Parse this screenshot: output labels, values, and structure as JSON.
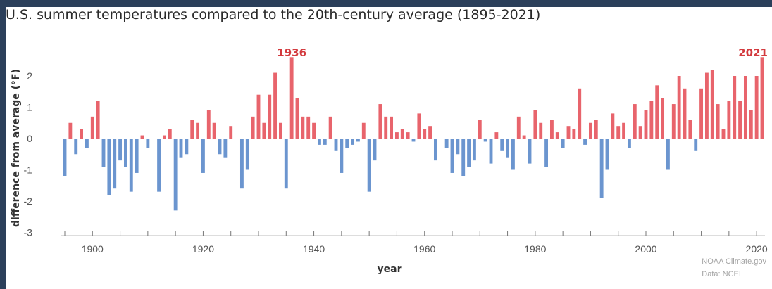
{
  "colors": {
    "above": "#e8646c",
    "below": "#6b95cf",
    "axis": "#555555",
    "accent": "#d33a3e"
  },
  "chart_data": {
    "type": "bar",
    "title": "U.S. summer temperatures compared to the 20th-century average (1895-2021)",
    "xlabel": "year",
    "ylabel": "difference from average (°F)",
    "xlim": [
      1895,
      2021
    ],
    "ylim": [
      -3,
      2.6
    ],
    "xticks": [
      1900,
      1920,
      1940,
      1960,
      1980,
      2000,
      2020
    ],
    "yticks": [
      -3,
      -2,
      -1,
      0,
      1,
      2
    ],
    "annotations": [
      {
        "text": "1936",
        "x": 1936
      },
      {
        "text": "2021",
        "x": 2021
      }
    ],
    "x": [
      1895,
      1896,
      1897,
      1898,
      1899,
      1900,
      1901,
      1902,
      1903,
      1904,
      1905,
      1906,
      1907,
      1908,
      1909,
      1910,
      1911,
      1912,
      1913,
      1914,
      1915,
      1916,
      1917,
      1918,
      1919,
      1920,
      1921,
      1922,
      1923,
      1924,
      1925,
      1926,
      1927,
      1928,
      1929,
      1930,
      1931,
      1932,
      1933,
      1934,
      1935,
      1936,
      1937,
      1938,
      1939,
      1940,
      1941,
      1942,
      1943,
      1944,
      1945,
      1946,
      1947,
      1948,
      1949,
      1950,
      1951,
      1952,
      1953,
      1954,
      1955,
      1956,
      1957,
      1958,
      1959,
      1960,
      1961,
      1962,
      1963,
      1964,
      1965,
      1966,
      1967,
      1968,
      1969,
      1970,
      1971,
      1972,
      1973,
      1974,
      1975,
      1976,
      1977,
      1978,
      1979,
      1980,
      1981,
      1982,
      1983,
      1984,
      1985,
      1986,
      1987,
      1988,
      1989,
      1990,
      1991,
      1992,
      1993,
      1994,
      1995,
      1996,
      1997,
      1998,
      1999,
      2000,
      2001,
      2002,
      2003,
      2004,
      2005,
      2006,
      2007,
      2008,
      2009,
      2010,
      2011,
      2012,
      2013,
      2014,
      2015,
      2016,
      2017,
      2018,
      2019,
      2020,
      2021
    ],
    "values": [
      -1.2,
      0.5,
      -0.5,
      0.3,
      -0.3,
      0.7,
      1.2,
      -0.9,
      -1.8,
      -1.6,
      -0.7,
      -0.9,
      -1.7,
      -1.1,
      0.1,
      -0.3,
      0.0,
      -1.7,
      0.1,
      0.3,
      -2.3,
      -0.6,
      -0.5,
      0.6,
      0.5,
      -1.1,
      0.9,
      0.5,
      -0.5,
      -0.6,
      0.4,
      0.0,
      -1.6,
      -1.0,
      0.7,
      1.4,
      0.5,
      1.4,
      2.1,
      0.5,
      -1.6,
      2.6,
      1.3,
      0.7,
      0.7,
      0.5,
      -0.2,
      -0.2,
      0.7,
      -0.4,
      -1.1,
      -0.3,
      -0.2,
      -0.1,
      0.5,
      -1.7,
      -0.7,
      1.1,
      0.7,
      0.7,
      0.2,
      0.3,
      0.2,
      -0.1,
      0.8,
      0.3,
      0.4,
      -0.7,
      0.0,
      -0.3,
      -1.1,
      -0.5,
      -1.2,
      -0.9,
      -0.7,
      0.6,
      -0.1,
      -0.8,
      0.2,
      -0.4,
      -0.6,
      -1.0,
      0.7,
      0.1,
      -0.8,
      0.9,
      0.5,
      -0.9,
      0.6,
      0.2,
      -0.3,
      0.4,
      0.3,
      1.6,
      -0.2,
      0.5,
      0.6,
      -1.9,
      -1.0,
      0.8,
      0.4,
      0.5,
      -0.3,
      1.1,
      0.4,
      0.9,
      1.2,
      1.7,
      1.3,
      -1.0,
      1.1,
      2.0,
      1.6,
      0.6,
      -0.4,
      1.6,
      2.1,
      2.2,
      1.1,
      0.3,
      1.2,
      2.0,
      1.2,
      2.0,
      0.9,
      2.0,
      2.6
    ]
  },
  "credit": {
    "line1": "NOAA Climate.gov",
    "line2": "Data: NCEI"
  }
}
